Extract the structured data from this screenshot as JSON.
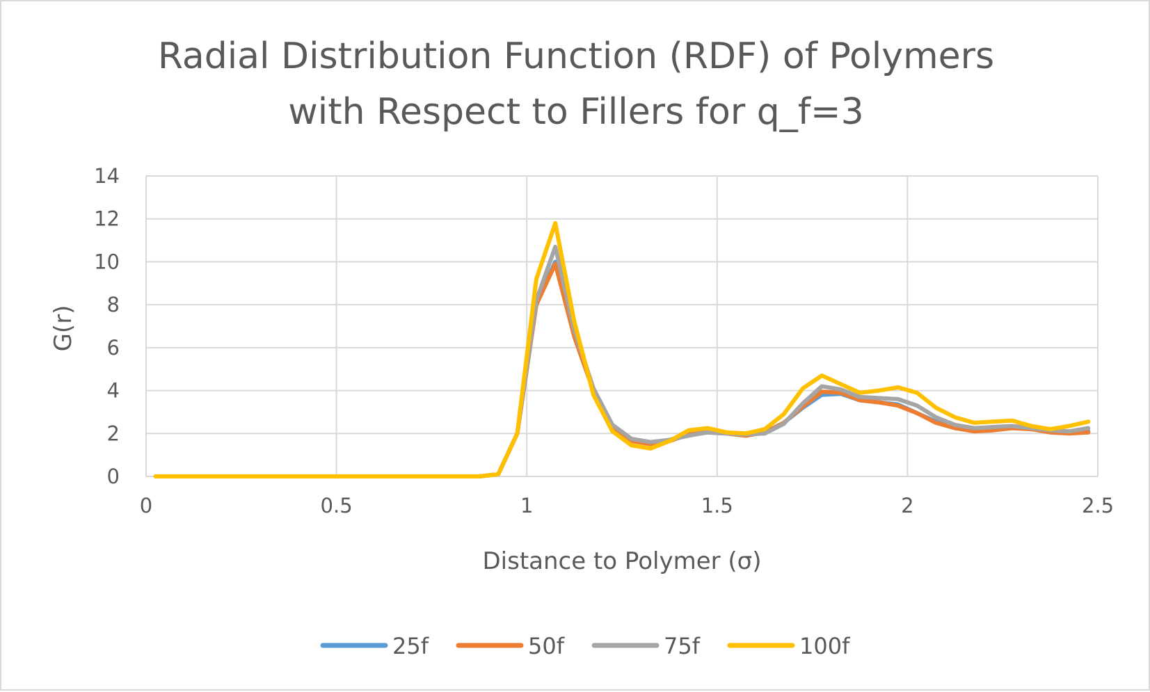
{
  "chart_data": {
    "type": "line",
    "title_lines": [
      "Radial Distribution Function (RDF) of Polymers",
      "with Respect to Fillers for q_f=3"
    ],
    "xlabel": "Distance to Polymer (σ)",
    "ylabel": "G(r)",
    "xlim": [
      0,
      2.5
    ],
    "ylim": [
      0,
      14
    ],
    "xticks": [
      0,
      0.5,
      1,
      1.5,
      2,
      2.5
    ],
    "xtick_labels": [
      "0",
      "0.5",
      "1",
      "1.5",
      "2",
      "2.5"
    ],
    "yticks": [
      0,
      2,
      4,
      6,
      8,
      10,
      12,
      14
    ],
    "ytick_labels": [
      "0",
      "2",
      "4",
      "6",
      "8",
      "10",
      "12",
      "14"
    ],
    "grid": true,
    "legend_position": "bottom",
    "x": [
      0.025,
      0.075,
      0.125,
      0.175,
      0.225,
      0.275,
      0.325,
      0.375,
      0.425,
      0.475,
      0.525,
      0.575,
      0.625,
      0.675,
      0.725,
      0.775,
      0.825,
      0.875,
      0.925,
      0.975,
      1.025,
      1.075,
      1.125,
      1.175,
      1.225,
      1.275,
      1.325,
      1.375,
      1.425,
      1.475,
      1.525,
      1.575,
      1.625,
      1.675,
      1.725,
      1.775,
      1.825,
      1.875,
      1.925,
      1.975,
      2.025,
      2.075,
      2.125,
      2.175,
      2.225,
      2.275,
      2.325,
      2.375,
      2.425,
      2.475
    ],
    "series": [
      {
        "name": "25f",
        "color": "#5b9bd5",
        "values": [
          0,
          0,
          0,
          0,
          0,
          0,
          0,
          0,
          0,
          0,
          0,
          0,
          0,
          0,
          0,
          0,
          0,
          0,
          0.1,
          2.0,
          8.0,
          10.0,
          6.5,
          4.0,
          2.3,
          1.7,
          1.55,
          1.7,
          1.95,
          2.05,
          2.0,
          1.9,
          2.05,
          2.5,
          3.2,
          3.8,
          3.85,
          3.55,
          3.45,
          3.35,
          2.95,
          2.55,
          2.25,
          2.15,
          2.2,
          2.3,
          2.2,
          2.1,
          2.05,
          2.1
        ]
      },
      {
        "name": "50f",
        "color": "#ed7d31",
        "values": [
          0,
          0,
          0,
          0,
          0,
          0,
          0,
          0,
          0,
          0,
          0,
          0,
          0,
          0,
          0,
          0,
          0,
          0,
          0.1,
          2.0,
          8.0,
          9.9,
          6.5,
          4.0,
          2.3,
          1.65,
          1.5,
          1.65,
          1.95,
          2.05,
          2.0,
          1.9,
          2.05,
          2.5,
          3.25,
          3.95,
          3.9,
          3.55,
          3.45,
          3.3,
          2.95,
          2.5,
          2.25,
          2.1,
          2.15,
          2.25,
          2.2,
          2.05,
          2.0,
          2.05
        ]
      },
      {
        "name": "75f",
        "color": "#a5a5a5",
        "values": [
          0,
          0,
          0,
          0,
          0,
          0,
          0,
          0,
          0,
          0,
          0,
          0,
          0,
          0,
          0,
          0,
          0,
          0,
          0.1,
          2.0,
          8.2,
          10.7,
          6.8,
          4.1,
          2.4,
          1.75,
          1.6,
          1.7,
          1.9,
          2.05,
          2.0,
          1.95,
          2.0,
          2.45,
          3.4,
          4.2,
          4.05,
          3.7,
          3.65,
          3.6,
          3.3,
          2.75,
          2.4,
          2.25,
          2.3,
          2.35,
          2.25,
          2.15,
          2.1,
          2.25
        ]
      },
      {
        "name": "100f",
        "color": "#ffc000",
        "values": [
          0,
          0,
          0,
          0,
          0,
          0,
          0,
          0,
          0,
          0,
          0,
          0,
          0,
          0,
          0,
          0,
          0,
          0,
          0.1,
          2.0,
          9.2,
          11.8,
          7.2,
          3.8,
          2.1,
          1.45,
          1.3,
          1.65,
          2.15,
          2.25,
          2.05,
          2.0,
          2.2,
          2.9,
          4.1,
          4.7,
          4.3,
          3.9,
          4.0,
          4.15,
          3.9,
          3.2,
          2.75,
          2.5,
          2.55,
          2.6,
          2.35,
          2.2,
          2.35,
          2.55
        ]
      }
    ]
  }
}
